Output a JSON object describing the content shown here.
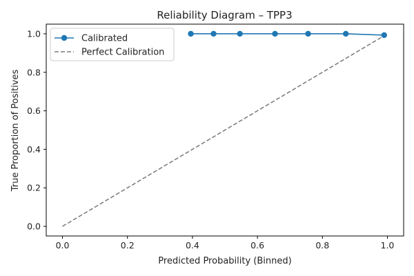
{
  "chart_data": {
    "type": "line",
    "title": "Reliability Diagram – TPP3",
    "xlabel": "Predicted Probability (Binned)",
    "ylabel": "True Proportion of Positives",
    "xlim": [
      -0.05,
      1.05
    ],
    "ylim": [
      -0.05,
      1.05
    ],
    "xticks": [
      0.0,
      0.2,
      0.4,
      0.6,
      0.8,
      1.0
    ],
    "yticks": [
      0.0,
      0.2,
      0.4,
      0.6,
      0.8,
      1.0
    ],
    "xtick_labels": [
      "0.0",
      "0.2",
      "0.4",
      "0.6",
      "0.8",
      "1.0"
    ],
    "ytick_labels": [
      "0.0",
      "0.2",
      "0.4",
      "0.6",
      "0.8",
      "1.0"
    ],
    "grid": false,
    "legend_position": "top-left",
    "series": [
      {
        "name": "Calibrated",
        "style": "solid-with-markers",
        "color": "#1f77b4",
        "x": [
          0.395,
          0.465,
          0.546,
          0.654,
          0.756,
          0.872,
          0.99
        ],
        "y": [
          1.0,
          1.0,
          1.0,
          1.0,
          1.0,
          1.0,
          0.993
        ]
      },
      {
        "name": "Perfect Calibration",
        "style": "dashed",
        "color": "#7f7f7f",
        "x": [
          0.0,
          1.0
        ],
        "y": [
          0.0,
          1.0
        ]
      }
    ]
  }
}
